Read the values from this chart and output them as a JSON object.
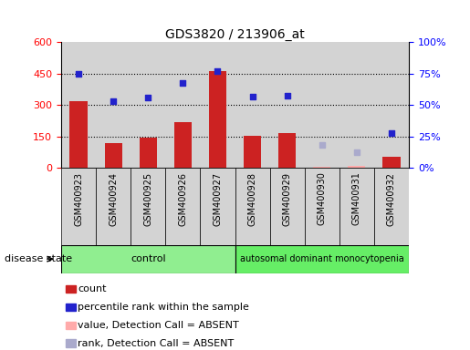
{
  "title": "GDS3820 / 213906_at",
  "samples": [
    "GSM400923",
    "GSM400924",
    "GSM400925",
    "GSM400926",
    "GSM400927",
    "GSM400928",
    "GSM400929",
    "GSM400930",
    "GSM400931",
    "GSM400932"
  ],
  "bar_values": [
    320,
    120,
    145,
    220,
    460,
    155,
    165,
    5,
    10,
    55
  ],
  "bar_absent": [
    null,
    null,
    null,
    null,
    null,
    null,
    null,
    5,
    10,
    null
  ],
  "rank_values": [
    450,
    320,
    335,
    405,
    462,
    338,
    345,
    null,
    null,
    165
  ],
  "rank_absent": [
    null,
    null,
    null,
    null,
    null,
    null,
    null,
    110,
    75,
    null
  ],
  "bar_color": "#cc2222",
  "bar_absent_color": "#ffaaaa",
  "rank_color": "#2222cc",
  "rank_absent_color": "#aaaacc",
  "control_samples": 5,
  "disease_label": "autosomal dominant monocytopenia",
  "control_label": "control",
  "ylim_left": [
    0,
    600
  ],
  "ylim_right": [
    0,
    100
  ],
  "yticks_left": [
    0,
    150,
    300,
    450,
    600
  ],
  "yticks_right": [
    0,
    25,
    50,
    75,
    100
  ],
  "ytick_labels_right": [
    "0%",
    "25%",
    "50%",
    "75%",
    "100%"
  ],
  "legend_entries": [
    "count",
    "percentile rank within the sample",
    "value, Detection Call = ABSENT",
    "rank, Detection Call = ABSENT"
  ],
  "legend_colors": [
    "#cc2222",
    "#2222cc",
    "#ffaaaa",
    "#aaaacc"
  ],
  "bg_color": "#d3d3d3",
  "control_bg": "#90ee90",
  "disease_bg": "#66ee66",
  "hgrid_values": [
    150,
    300,
    450
  ]
}
